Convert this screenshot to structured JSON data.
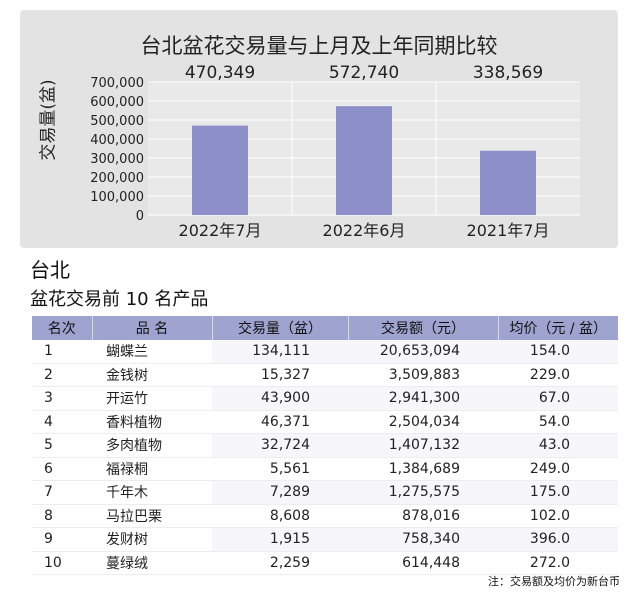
{
  "chart_data": {
    "type": "bar",
    "title": "台北盆花交易量与上月及上年同期比较",
    "ylabel": "交易量(盆)",
    "xlabel": "",
    "categories": [
      "2022年7月",
      "2022年6月",
      "2021年7月"
    ],
    "values": [
      470349,
      572740,
      338569
    ],
    "value_labels": [
      "470,349",
      "572,740",
      "338,569"
    ],
    "ylim": [
      0,
      700000
    ],
    "yticks": [
      0,
      100000,
      200000,
      300000,
      400000,
      500000,
      600000,
      700000
    ],
    "ytick_labels": [
      "0",
      "100,000",
      "200,000",
      "300,000",
      "400,000",
      "500,000",
      "600,000",
      "700,000"
    ],
    "grid": true,
    "bar_color": "#8c8fca",
    "background_color": "#e3e3e3"
  },
  "section": {
    "title": "台北",
    "subtitle": "盆花交易前 10 名产品"
  },
  "table": {
    "headers": [
      "名次",
      "品 名",
      "交易量（盆）",
      "交易额（元）",
      "均价（元 / 盆）"
    ],
    "rows": [
      [
        "1",
        "蝴蝶兰",
        "134,111",
        "20,653,094",
        "154.0"
      ],
      [
        "2",
        "金钱树",
        "15,327",
        "3,509,883",
        "229.0"
      ],
      [
        "3",
        "开运竹",
        "43,900",
        "2,941,300",
        "67.0"
      ],
      [
        "4",
        "香料植物",
        "46,371",
        "2,504,034",
        "54.0"
      ],
      [
        "5",
        "多肉植物",
        "32,724",
        "1,407,132",
        "43.0"
      ],
      [
        "6",
        "福禄桐",
        "5,561",
        "1,384,689",
        "249.0"
      ],
      [
        "7",
        "千年木",
        "7,289",
        "1,275,575",
        "175.0"
      ],
      [
        "8",
        "马拉巴栗",
        "8,608",
        "878,016",
        "102.0"
      ],
      [
        "9",
        "发财树",
        "1,915",
        "758,340",
        "396.0"
      ],
      [
        "10",
        "蔓绿绒",
        "2,259",
        "614,448",
        "272.0"
      ]
    ],
    "header_color": "#9fa3cf"
  },
  "footnote": "注：交易额及均价为新台币"
}
